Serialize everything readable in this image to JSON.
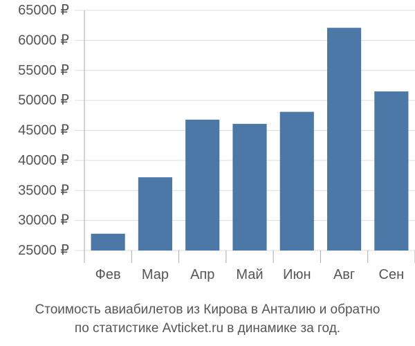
{
  "chart_data": {
    "type": "bar",
    "categories": [
      "Фев",
      "Мар",
      "Апр",
      "Май",
      "Июн",
      "Авг",
      "Сен"
    ],
    "values": [
      27800,
      37200,
      46800,
      46100,
      48100,
      62100,
      51500
    ],
    "ylim": [
      25000,
      65000
    ],
    "yticks": [
      25000,
      30000,
      35000,
      40000,
      45000,
      50000,
      55000,
      60000,
      65000
    ],
    "ytick_labels": [
      "25000 ₽",
      "30000 ₽",
      "35000 ₽",
      "40000 ₽",
      "45000 ₽",
      "50000 ₽",
      "55000 ₽",
      "60000 ₽",
      "65000 ₽"
    ],
    "grid": true,
    "colors": {
      "bar": "#4c78a8",
      "grid": "#dddddd",
      "axis": "#aaaaaa",
      "text": "#555555"
    }
  },
  "caption": {
    "line1": "Стоимость авиабилетов из Кирова в Анталию и обратно",
    "line2": "по статистике Avticket.ru в динамике за год."
  }
}
